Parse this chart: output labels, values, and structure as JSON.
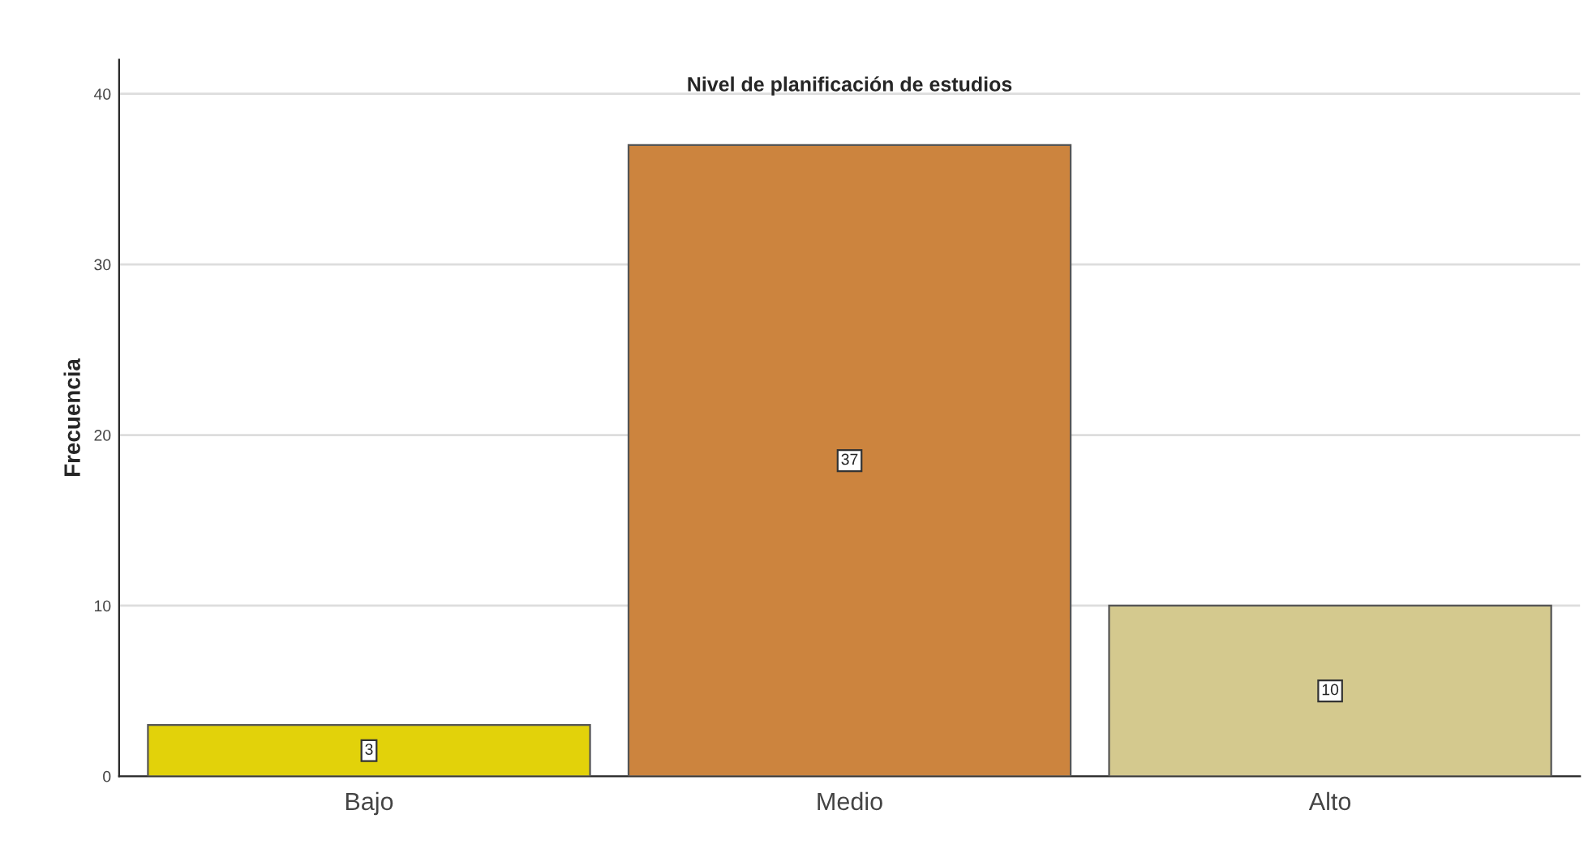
{
  "chart_data": {
    "type": "bar",
    "title": "Nivel de planificación de estudios",
    "ylabel": "Frecuencia",
    "categories": [
      "Bajo",
      "Medio",
      "Alto"
    ],
    "values": [
      3,
      37,
      10
    ],
    "colors": [
      "#e2d20a",
      "#cc843e",
      "#d4c98e"
    ],
    "ylim": [
      0,
      42
    ],
    "yticks": [
      0,
      10,
      20,
      30,
      40
    ],
    "grid": "y",
    "data_labels": true,
    "legend": false
  }
}
